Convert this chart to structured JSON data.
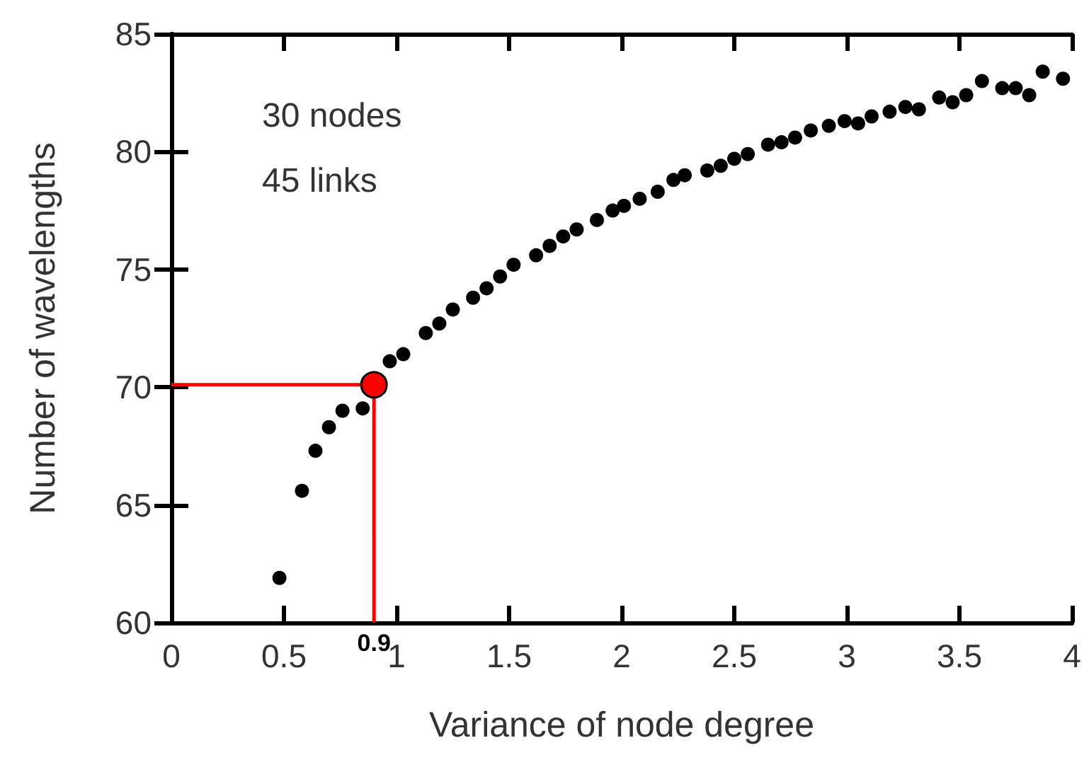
{
  "chart_data": {
    "type": "scatter",
    "xlabel": "Variance of node degree",
    "ylabel": "Number of wavelengths",
    "xlim": [
      0,
      4
    ],
    "xticks": [
      0,
      0.5,
      1,
      1.5,
      2,
      2.5,
      3,
      3.5,
      4
    ],
    "ylim": [
      60,
      85
    ],
    "yticks": [
      60,
      65,
      70,
      75,
      80,
      85
    ],
    "grid": false,
    "marker": "circle",
    "annotations": [
      "30 nodes",
      "45 links",
      {
        "text": "0.9",
        "x": 0.9,
        "y": 60
      }
    ],
    "series": [
      {
        "color": "#000000",
        "x": [
          0.48,
          0.58,
          0.64,
          0.7,
          0.76,
          0.85,
          0.97,
          1.03,
          1.13,
          1.19,
          1.25,
          1.34,
          1.4,
          1.46,
          1.52,
          1.62,
          1.68,
          1.74,
          1.8,
          1.89,
          1.96,
          2.01,
          2.08,
          2.16,
          2.23,
          2.28,
          2.38,
          2.44,
          2.5,
          2.56,
          2.65,
          2.71,
          2.77,
          2.84,
          2.92,
          2.99,
          3.05,
          3.11,
          3.19,
          3.26,
          3.32,
          3.41,
          3.47,
          3.53,
          3.6,
          3.69,
          3.75,
          3.81,
          3.87,
          3.96
        ],
        "values": [
          61.9,
          65.6,
          67.3,
          68.3,
          69.0,
          69.1,
          71.1,
          71.4,
          72.3,
          72.7,
          73.3,
          73.8,
          74.2,
          74.7,
          75.2,
          75.6,
          76.0,
          76.4,
          76.7,
          77.1,
          77.5,
          77.7,
          78.0,
          78.3,
          78.8,
          79.0,
          79.2,
          79.4,
          79.7,
          79.9,
          80.3,
          80.4,
          80.6,
          80.9,
          81.1,
          81.3,
          81.2,
          81.5,
          81.7,
          81.9,
          81.8,
          82.3,
          82.1,
          82.4,
          83.0,
          82.7,
          82.7,
          82.4,
          83.4,
          83.1
        ]
      },
      {
        "type": "line",
        "color": "#ff0000",
        "marker": "none",
        "line_style": "solid",
        "x": [
          0,
          0.9,
          0.9
        ],
        "values": [
          70.1,
          70.1,
          60
        ]
      },
      {
        "type": "scatter",
        "color": "#ff0000",
        "x": [
          0.9
        ],
        "values": [
          70.1
        ]
      }
    ]
  }
}
